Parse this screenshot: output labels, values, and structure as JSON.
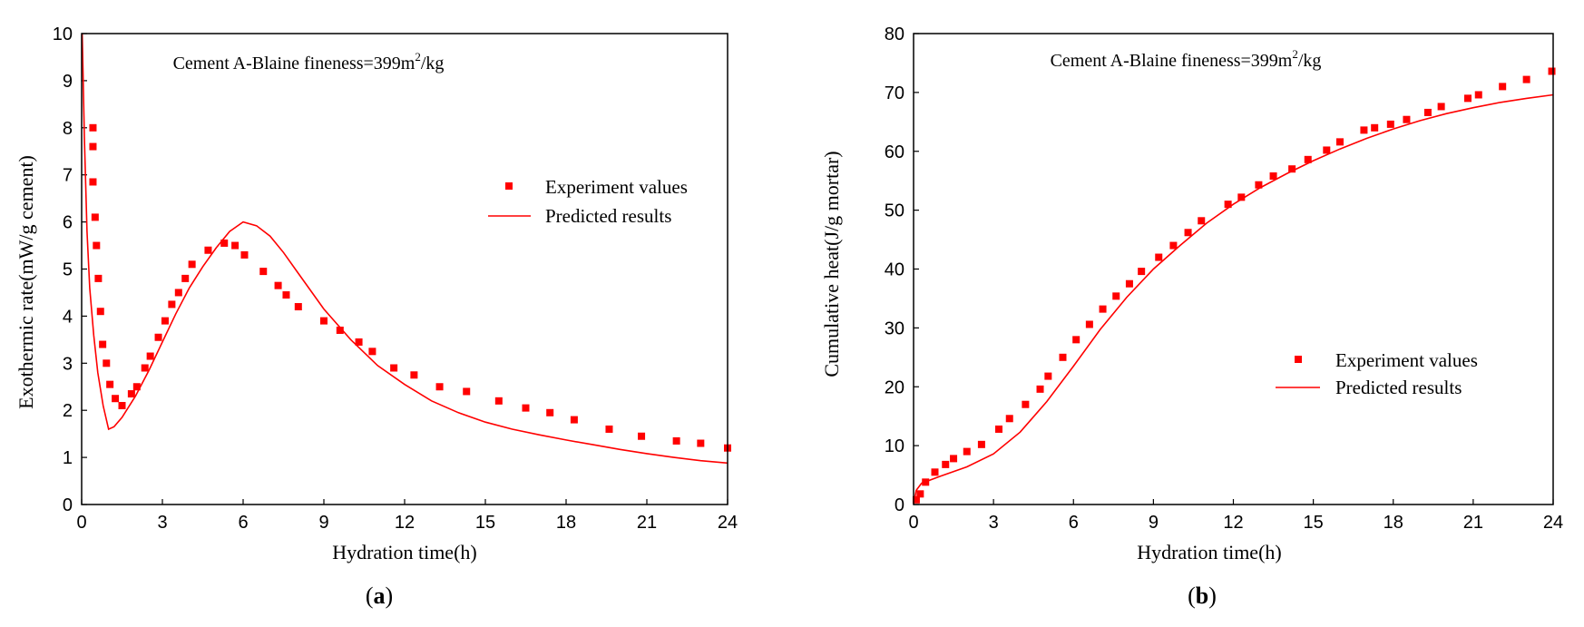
{
  "chart_data": [
    {
      "type": "scatter+line",
      "panel_caption": "(a)",
      "panel_caption_parts": {
        "open": "(",
        "letter": "a",
        "close": ")"
      },
      "annotation": {
        "prefix": "Cement A-Blaine fineness=399m",
        "sup": "2",
        "suffix": "/kg"
      },
      "xlabel": "Hydration time(h)",
      "ylabel": "Exothermic rate(mW/g cement)",
      "xlim": [
        0,
        24
      ],
      "ylim": [
        0,
        10
      ],
      "xticks": [
        0,
        3,
        6,
        9,
        12,
        15,
        18,
        21,
        24
      ],
      "yticks": [
        0,
        1,
        2,
        3,
        4,
        5,
        6,
        7,
        8,
        9,
        10
      ],
      "legend": {
        "placement": "right",
        "entries": [
          "Experiment values",
          "Predicted results"
        ]
      },
      "series": [
        {
          "name": "Experiment values",
          "style": "square-markers",
          "color": "#ff0000",
          "points": [
            [
              0.42,
              8.0
            ],
            [
              0.42,
              7.6
            ],
            [
              0.42,
              6.85
            ],
            [
              0.5,
              6.1
            ],
            [
              0.55,
              5.5
            ],
            [
              0.62,
              4.8
            ],
            [
              0.7,
              4.1
            ],
            [
              0.78,
              3.4
            ],
            [
              0.92,
              3.0
            ],
            [
              1.05,
              2.55
            ],
            [
              1.25,
              2.25
            ],
            [
              1.5,
              2.1
            ],
            [
              1.85,
              2.35
            ],
            [
              2.05,
              2.5
            ],
            [
              2.35,
              2.9
            ],
            [
              2.55,
              3.15
            ],
            [
              2.85,
              3.55
            ],
            [
              3.1,
              3.9
            ],
            [
              3.35,
              4.25
            ],
            [
              3.6,
              4.5
            ],
            [
              3.85,
              4.8
            ],
            [
              4.1,
              5.1
            ],
            [
              4.7,
              5.4
            ],
            [
              5.3,
              5.55
            ],
            [
              5.7,
              5.5
            ],
            [
              6.05,
              5.3
            ],
            [
              6.75,
              4.95
            ],
            [
              7.3,
              4.65
            ],
            [
              7.6,
              4.45
            ],
            [
              8.05,
              4.2
            ],
            [
              9.0,
              3.9
            ],
            [
              9.6,
              3.7
            ],
            [
              10.3,
              3.45
            ],
            [
              10.8,
              3.25
            ],
            [
              11.6,
              2.9
            ],
            [
              12.35,
              2.75
            ],
            [
              13.3,
              2.5
            ],
            [
              14.3,
              2.4
            ],
            [
              15.5,
              2.2
            ],
            [
              16.5,
              2.05
            ],
            [
              17.4,
              1.95
            ],
            [
              18.3,
              1.8
            ],
            [
              19.6,
              1.6
            ],
            [
              20.8,
              1.45
            ],
            [
              22.1,
              1.35
            ],
            [
              23.0,
              1.3
            ],
            [
              24.0,
              1.2
            ]
          ]
        },
        {
          "name": "Predicted results",
          "style": "line",
          "color": "#ff0000",
          "points": [
            [
              0.02,
              10.0
            ],
            [
              0.05,
              9.2
            ],
            [
              0.1,
              7.8
            ],
            [
              0.2,
              5.8
            ],
            [
              0.3,
              4.6
            ],
            [
              0.45,
              3.6
            ],
            [
              0.6,
              2.8
            ],
            [
              0.8,
              2.1
            ],
            [
              1.0,
              1.6
            ],
            [
              1.2,
              1.65
            ],
            [
              1.5,
              1.85
            ],
            [
              2.0,
              2.3
            ],
            [
              2.5,
              2.85
            ],
            [
              3.0,
              3.45
            ],
            [
              3.5,
              4.05
            ],
            [
              4.0,
              4.6
            ],
            [
              4.5,
              5.05
            ],
            [
              5.0,
              5.45
            ],
            [
              5.5,
              5.8
            ],
            [
              6.0,
              6.0
            ],
            [
              6.5,
              5.92
            ],
            [
              7.0,
              5.7
            ],
            [
              7.5,
              5.35
            ],
            [
              8.0,
              4.95
            ],
            [
              9.0,
              4.15
            ],
            [
              10.0,
              3.5
            ],
            [
              11.0,
              2.95
            ],
            [
              12.0,
              2.55
            ],
            [
              13.0,
              2.2
            ],
            [
              14.0,
              1.95
            ],
            [
              15.0,
              1.75
            ],
            [
              16.0,
              1.6
            ],
            [
              17.0,
              1.48
            ],
            [
              18.0,
              1.37
            ],
            [
              19.0,
              1.27
            ],
            [
              20.0,
              1.17
            ],
            [
              21.0,
              1.08
            ],
            [
              22.0,
              1.0
            ],
            [
              23.0,
              0.93
            ],
            [
              24.0,
              0.88
            ]
          ]
        }
      ]
    },
    {
      "type": "scatter+line",
      "panel_caption": "(b)",
      "panel_caption_parts": {
        "open": "(",
        "letter": "b",
        "close": ")"
      },
      "annotation": {
        "prefix": "Cement A-Blaine fineness=399m",
        "sup": "2",
        "suffix": "/kg"
      },
      "xlabel": "Hydration time(h)",
      "ylabel": "Cumulative heat(J/g mortar)",
      "xlim": [
        0,
        24
      ],
      "ylim": [
        0,
        80
      ],
      "xticks": [
        0,
        3,
        6,
        9,
        12,
        15,
        18,
        21,
        24
      ],
      "yticks": [
        0,
        10,
        20,
        30,
        40,
        50,
        60,
        70,
        80
      ],
      "legend": {
        "placement": "bottom-right",
        "entries": [
          "Experiment values",
          "Predicted results"
        ]
      },
      "series": [
        {
          "name": "Experiment values",
          "style": "square-markers",
          "color": "#ff0000",
          "points": [
            [
              0.1,
              0.8
            ],
            [
              0.25,
              1.8
            ],
            [
              0.45,
              3.8
            ],
            [
              0.8,
              5.5
            ],
            [
              1.2,
              6.8
            ],
            [
              1.5,
              7.8
            ],
            [
              2.0,
              9.0
            ],
            [
              2.55,
              10.2
            ],
            [
              3.2,
              12.8
            ],
            [
              3.6,
              14.6
            ],
            [
              4.2,
              17.0
            ],
            [
              4.75,
              19.6
            ],
            [
              5.05,
              21.8
            ],
            [
              5.6,
              25.0
            ],
            [
              6.1,
              28.0
            ],
            [
              6.6,
              30.6
            ],
            [
              7.1,
              33.2
            ],
            [
              7.6,
              35.4
            ],
            [
              8.1,
              37.5
            ],
            [
              8.55,
              39.6
            ],
            [
              9.2,
              42.0
            ],
            [
              9.75,
              44.0
            ],
            [
              10.3,
              46.2
            ],
            [
              10.8,
              48.2
            ],
            [
              11.8,
              51.0
            ],
            [
              12.3,
              52.2
            ],
            [
              12.95,
              54.3
            ],
            [
              13.5,
              55.8
            ],
            [
              14.2,
              57.0
            ],
            [
              14.8,
              58.6
            ],
            [
              15.5,
              60.2
            ],
            [
              16.0,
              61.6
            ],
            [
              16.9,
              63.6
            ],
            [
              17.3,
              64.0
            ],
            [
              17.9,
              64.6
            ],
            [
              18.5,
              65.4
            ],
            [
              19.3,
              66.6
            ],
            [
              19.8,
              67.6
            ],
            [
              20.8,
              69.0
            ],
            [
              21.2,
              69.6
            ],
            [
              22.1,
              71.0
            ],
            [
              23.0,
              72.2
            ],
            [
              23.95,
              73.6
            ]
          ]
        },
        {
          "name": "Predicted results",
          "style": "line",
          "color": "#ff0000",
          "points": [
            [
              0.0,
              0.0
            ],
            [
              0.1,
              2.4
            ],
            [
              0.3,
              3.6
            ],
            [
              1.0,
              4.8
            ],
            [
              2.0,
              6.4
            ],
            [
              3.0,
              8.6
            ],
            [
              4.0,
              12.3
            ],
            [
              5.0,
              17.5
            ],
            [
              6.0,
              23.5
            ],
            [
              7.0,
              29.7
            ],
            [
              8.0,
              35.2
            ],
            [
              9.0,
              40.0
            ],
            [
              10.0,
              44.0
            ],
            [
              11.0,
              47.8
            ],
            [
              12.0,
              51.0
            ],
            [
              13.0,
              53.8
            ],
            [
              14.0,
              56.2
            ],
            [
              15.0,
              58.4
            ],
            [
              16.0,
              60.4
            ],
            [
              17.0,
              62.2
            ],
            [
              18.0,
              63.8
            ],
            [
              19.0,
              65.2
            ],
            [
              20.0,
              66.4
            ],
            [
              21.0,
              67.4
            ],
            [
              22.0,
              68.3
            ],
            [
              23.0,
              69.0
            ],
            [
              24.0,
              69.6
            ]
          ]
        }
      ]
    }
  ]
}
